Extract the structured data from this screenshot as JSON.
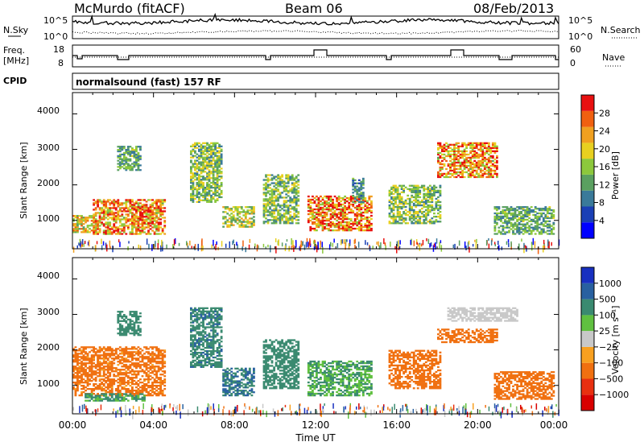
{
  "header": {
    "station": "McMurdo (fitACF)",
    "beam": "Beam 06",
    "date": "08/Feb/2013"
  },
  "noise_panel": {
    "left_label": "N.Sky",
    "right_label": "N.Search",
    "ticks": [
      "10^5",
      "10^0"
    ]
  },
  "freq_panel": {
    "left_label_line1": "Freq.",
    "left_label_line2": "[MHz]",
    "left_ticks": [
      "18",
      "8"
    ],
    "right_label": "Nave",
    "right_ticks": [
      "60",
      "0"
    ]
  },
  "cpid_panel": {
    "label": "CPID",
    "text": "normalsound (fast) 157 RF"
  },
  "power_panel": {
    "ylabel": "Slant Range [km]",
    "yticks": [
      "4000",
      "3000",
      "2000",
      "1000"
    ],
    "colorbar_label": "Power [dB]",
    "colorbar_ticks": [
      "28",
      "24",
      "20",
      "16",
      "12",
      "8",
      "4"
    ],
    "colors": [
      "#0000ff",
      "#1a3fb5",
      "#3a7a9a",
      "#5aa060",
      "#8cc83c",
      "#e8d020",
      "#f0a020",
      "#f06010",
      "#e81010"
    ]
  },
  "velocity_panel": {
    "ylabel": "Slant Range [km]",
    "yticks": [
      "4000",
      "3000",
      "2000",
      "1000"
    ],
    "colorbar_label": "Velocity [m s⁻¹]",
    "colorbar_ticks": [
      "1000",
      "500",
      "100",
      "25",
      "−25",
      "−100",
      "−500",
      "−1000"
    ],
    "colors": [
      "#1830c0",
      "#2860a0",
      "#3a8a70",
      "#60c040",
      "#c8c8c8",
      "#f8a020",
      "#f07010",
      "#e83010",
      "#d80000"
    ]
  },
  "xaxis": {
    "ticks": [
      "00:00",
      "04:00",
      "08:00",
      "12:00",
      "16:00",
      "20:00",
      "00:00"
    ],
    "label": "Time UT"
  },
  "chart_data": [
    {
      "type": "heatmap",
      "title": "Power",
      "ylabel": "Slant Range [km]",
      "xlabel": "Time UT",
      "xlim": [
        0,
        24
      ],
      "ylim": [
        200,
        4600
      ],
      "colorbar": {
        "label": "Power [dB]",
        "range": [
          0,
          30
        ]
      },
      "regions": [
        {
          "t0": 0.0,
          "t1": 1.2,
          "r0": 650,
          "r1": 1150,
          "value": 18
        },
        {
          "t0": 1.0,
          "t1": 4.6,
          "r0": 600,
          "r1": 1600,
          "value": 22
        },
        {
          "t0": 3.0,
          "t1": 4.0,
          "r0": 900,
          "r1": 1400,
          "value": 26
        },
        {
          "t0": 2.2,
          "t1": 3.4,
          "r0": 2400,
          "r1": 3100,
          "value": 12
        },
        {
          "t0": 5.8,
          "t1": 7.4,
          "r0": 1500,
          "r1": 3200,
          "value": 14
        },
        {
          "t0": 7.4,
          "t1": 9.0,
          "r0": 800,
          "r1": 1400,
          "value": 16
        },
        {
          "t0": 9.4,
          "t1": 11.2,
          "r0": 900,
          "r1": 2300,
          "value": 14
        },
        {
          "t0": 11.6,
          "t1": 14.8,
          "r0": 700,
          "r1": 1700,
          "value": 24
        },
        {
          "t0": 13.8,
          "t1": 14.4,
          "r0": 1500,
          "r1": 2200,
          "value": 10
        },
        {
          "t0": 15.6,
          "t1": 18.2,
          "r0": 900,
          "r1": 2000,
          "value": 14
        },
        {
          "t0": 18.0,
          "t1": 21.0,
          "r0": 2200,
          "r1": 3200,
          "value": 22
        },
        {
          "t0": 20.8,
          "t1": 23.8,
          "r0": 600,
          "r1": 1400,
          "value": 12
        }
      ]
    },
    {
      "type": "heatmap",
      "title": "Velocity",
      "ylabel": "Slant Range [km]",
      "xlabel": "Time UT",
      "xlim": [
        0,
        24
      ],
      "ylim": [
        200,
        4600
      ],
      "colorbar": {
        "label": "Velocity [m s⁻¹]",
        "range": [
          -1000,
          1000
        ]
      },
      "regions": [
        {
          "t0": 0.0,
          "t1": 4.6,
          "r0": 700,
          "r1": 2100,
          "value": -150
        },
        {
          "t0": 0.6,
          "t1": 3.6,
          "r0": 550,
          "r1": 780,
          "value": 120
        },
        {
          "t0": 2.2,
          "t1": 3.4,
          "r0": 2400,
          "r1": 3100,
          "value": 300
        },
        {
          "t0": 5.8,
          "t1": 7.4,
          "r0": 1500,
          "r1": 3200,
          "value": 400
        },
        {
          "t0": 7.4,
          "t1": 9.0,
          "r0": 700,
          "r1": 1500,
          "value": 500
        },
        {
          "t0": 9.4,
          "t1": 11.2,
          "r0": 900,
          "r1": 2300,
          "value": 200
        },
        {
          "t0": 11.6,
          "t1": 14.8,
          "r0": 700,
          "r1": 1700,
          "value": 100
        },
        {
          "t0": 15.6,
          "t1": 18.2,
          "r0": 900,
          "r1": 2000,
          "value": -200
        },
        {
          "t0": 18.0,
          "t1": 21.0,
          "r0": 2200,
          "r1": 2600,
          "value": -250
        },
        {
          "t0": 18.5,
          "t1": 22.0,
          "r0": 2800,
          "r1": 3200,
          "value": 10
        },
        {
          "t0": 20.8,
          "t1": 23.8,
          "r0": 600,
          "r1": 1400,
          "value": -200
        }
      ]
    }
  ]
}
